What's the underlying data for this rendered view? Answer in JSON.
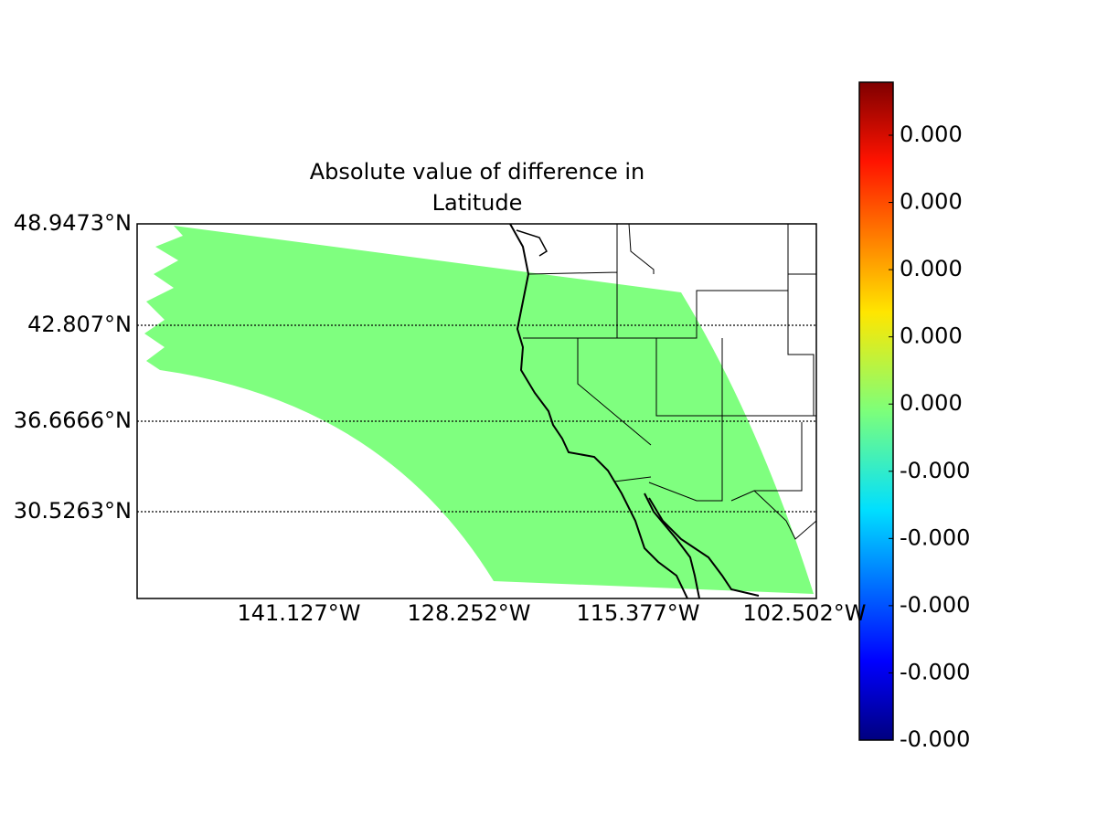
{
  "title_lines": [
    "Absolute value of difference in",
    "Latitude"
  ],
  "parallel_labels": [
    "48.9473°N",
    "42.807°N",
    "36.6666°N",
    "30.5263°N"
  ],
  "meridian_labels": [
    "141.127°W",
    "128.252°W",
    "115.377°W",
    "102.502°W"
  ],
  "colorbar_labels": [
    "0.000",
    "0.000",
    "0.000",
    "0.000",
    "0.000",
    "-0.000",
    "-0.000",
    "-0.000",
    "-0.000",
    "-0.000"
  ]
}
